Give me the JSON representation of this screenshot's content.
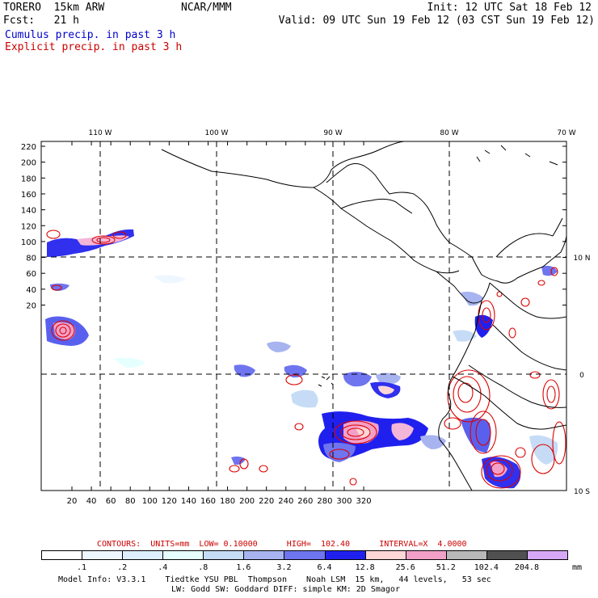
{
  "header": {
    "model": "TORERO  15km ARW",
    "org": "NCAR/MMM",
    "init": "Init: 12 UTC Sat 18 Feb 12",
    "fcst": "Fcst:   21 h",
    "valid": "Valid: 09 UTC Sun 19 Feb 12 (03 CST Sun 19 Feb 12)",
    "legend_cumulus": "Cumulus precip. in past 3 h",
    "legend_explicit": "Explicit precip. in past 3 h"
  },
  "colors": {
    "cumulus_text": "#0000cc",
    "explicit_text": "#cc0000",
    "contour": "#dd0000",
    "coast": "#000000"
  },
  "map": {
    "lon_labels": [
      "110 W",
      "100 W",
      "90 W",
      "80 W",
      "70 W"
    ],
    "lat_labels": [
      "10 N",
      "0",
      "10 S"
    ],
    "y_ticks": [
      "220",
      "200",
      "180",
      "160",
      "140",
      "120",
      "100",
      "80",
      "60",
      "40",
      "20"
    ],
    "x_ticks": [
      "20",
      "40",
      "60",
      "80",
      "100",
      "120",
      "140",
      "160",
      "180",
      "200",
      "220",
      "240",
      "260",
      "280",
      "300",
      "320"
    ]
  },
  "contours_line": "CONTOURS:  UNITS=mm  LOW= 0.10000      HIGH=  102.40      INTERVAL=X  4.0000",
  "colorbar": {
    "unit": "mm",
    "labels": [
      ".1",
      ".2",
      ".4",
      ".8",
      "1.6",
      "3.2",
      "6.4",
      "12.8",
      "25.6",
      "51.2",
      "102.4",
      "204.8"
    ],
    "colors": [
      "#ffffff",
      "#eef6ff",
      "#ddeeff",
      "#e6ffff",
      "#c6dcf6",
      "#a8b4f0",
      "#6f74ef",
      "#2020ee",
      "#ffd6d6",
      "#f2a0c8",
      "#b8b8b8",
      "#505050",
      "#d8a8f8"
    ]
  },
  "footer": {
    "line1": "Model Info: V3.3.1    Tiedtke YSU PBL  Thompson    Noah LSM  15 km,   44 levels,   53 sec",
    "line2": "LW: Godd SW: Goddard DIFF: simple KM: 2D Smagor"
  }
}
